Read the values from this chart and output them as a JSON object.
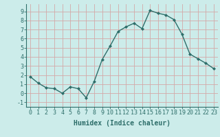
{
  "x": [
    0,
    1,
    2,
    3,
    4,
    5,
    6,
    7,
    8,
    9,
    10,
    11,
    12,
    13,
    14,
    15,
    16,
    17,
    18,
    19,
    20,
    21,
    22,
    23
  ],
  "y": [
    1.8,
    1.1,
    0.6,
    0.5,
    0.0,
    0.7,
    0.5,
    -0.5,
    1.3,
    3.7,
    5.2,
    6.8,
    7.3,
    7.7,
    7.1,
    9.1,
    8.8,
    8.6,
    8.1,
    6.5,
    4.3,
    3.8,
    3.3,
    2.7
  ],
  "line_color": "#2e6e6a",
  "bg_color": "#ccecea",
  "grid_color": "#d4a8a8",
  "xlabel": "Humidex (Indice chaleur)",
  "ylim": [
    -1.5,
    9.8
  ],
  "xlim": [
    -0.5,
    23.5
  ],
  "yticks": [
    -1,
    0,
    1,
    2,
    3,
    4,
    5,
    6,
    7,
    8,
    9
  ],
  "xticks": [
    0,
    1,
    2,
    3,
    4,
    5,
    6,
    7,
    8,
    9,
    10,
    11,
    12,
    13,
    14,
    15,
    16,
    17,
    18,
    19,
    20,
    21,
    22,
    23
  ],
  "marker": "D",
  "marker_size": 2.0,
  "line_width": 1.0,
  "xlabel_fontsize": 7.0,
  "tick_fontsize": 6.0
}
